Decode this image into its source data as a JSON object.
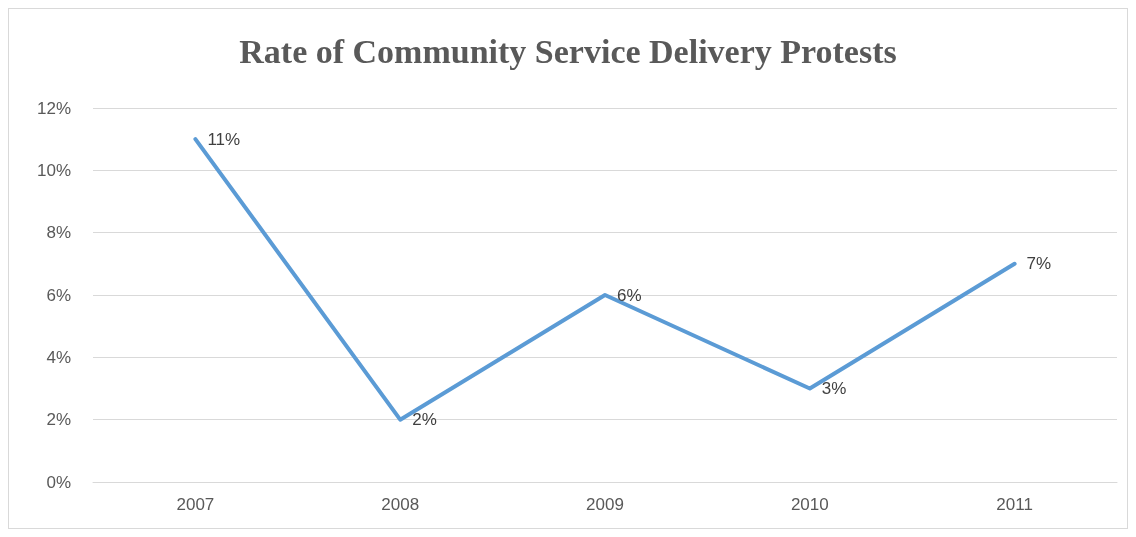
{
  "chart_data": {
    "type": "line",
    "title": "Rate of Community Service Delivery Protests",
    "categories": [
      "2007",
      "2008",
      "2009",
      "2010",
      "2011"
    ],
    "series": [
      {
        "color": "#5b9bd5",
        "values": [
          11,
          2,
          6,
          3,
          7
        ],
        "value_labels": [
          "11%",
          "2%",
          "6%",
          "3%",
          "7%"
        ]
      }
    ],
    "ylim": [
      0,
      12
    ],
    "yticks": [
      {
        "value": 0,
        "label": "0%"
      },
      {
        "value": 2,
        "label": "2%"
      },
      {
        "value": 4,
        "label": "4%"
      },
      {
        "value": 6,
        "label": "6%"
      },
      {
        "value": 8,
        "label": "8%"
      },
      {
        "value": 10,
        "label": "10%"
      },
      {
        "value": 12,
        "label": "12%"
      }
    ],
    "grid": "y",
    "marker": "none",
    "line_style": "solid"
  }
}
